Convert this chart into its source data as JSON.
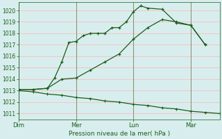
{
  "xlabel": "Pression niveau de la mer( hPa )",
  "ylim": [
    1010.5,
    1020.7
  ],
  "yticks": [
    1011,
    1012,
    1013,
    1014,
    1015,
    1016,
    1017,
    1018,
    1019,
    1020
  ],
  "bg_color": "#d8eeee",
  "grid_color": "#f0c8c8",
  "line_color": "#1a5c1a",
  "xtick_labels": [
    "Dim",
    "Mer",
    "Lun",
    "Mar"
  ],
  "xtick_positions": [
    0,
    2,
    4,
    6
  ],
  "xlim": [
    0,
    7
  ],
  "line1_x": [
    0,
    0.5,
    1.0,
    1.25,
    1.5,
    1.75,
    2.0,
    2.25,
    2.5,
    2.75,
    3.0,
    3.25,
    3.5,
    3.75,
    4.0,
    4.25,
    4.5,
    5.0,
    5.5,
    6.0,
    6.5
  ],
  "line1_y": [
    1013.1,
    1013.1,
    1013.2,
    1014.1,
    1015.5,
    1017.2,
    1017.3,
    1017.8,
    1018.0,
    1018.0,
    1018.0,
    1018.5,
    1018.5,
    1019.0,
    1019.9,
    1020.4,
    1020.2,
    1020.1,
    1018.9,
    1018.7,
    1017.0
  ],
  "line2_x": [
    0,
    0.5,
    1.0,
    1.5,
    2.0,
    2.5,
    3.0,
    3.5,
    4.0,
    4.5,
    5.0,
    5.5,
    6.0,
    6.5
  ],
  "line2_y": [
    1013.1,
    1013.1,
    1013.2,
    1014.0,
    1014.1,
    1014.8,
    1015.5,
    1016.2,
    1017.5,
    1018.5,
    1019.2,
    1019.0,
    1018.7,
    1017.0
  ],
  "line3_x": [
    0,
    0.5,
    1.0,
    1.5,
    2.0,
    2.5,
    3.0,
    3.5,
    4.0,
    4.5,
    5.0,
    5.5,
    6.0,
    6.5,
    7.0
  ],
  "line3_y": [
    1013.0,
    1012.9,
    1012.7,
    1012.6,
    1012.4,
    1012.3,
    1012.1,
    1012.0,
    1011.8,
    1011.7,
    1011.5,
    1011.4,
    1011.2,
    1011.1,
    1011.0
  ],
  "vline_positions": [
    0,
    2,
    4,
    6
  ]
}
